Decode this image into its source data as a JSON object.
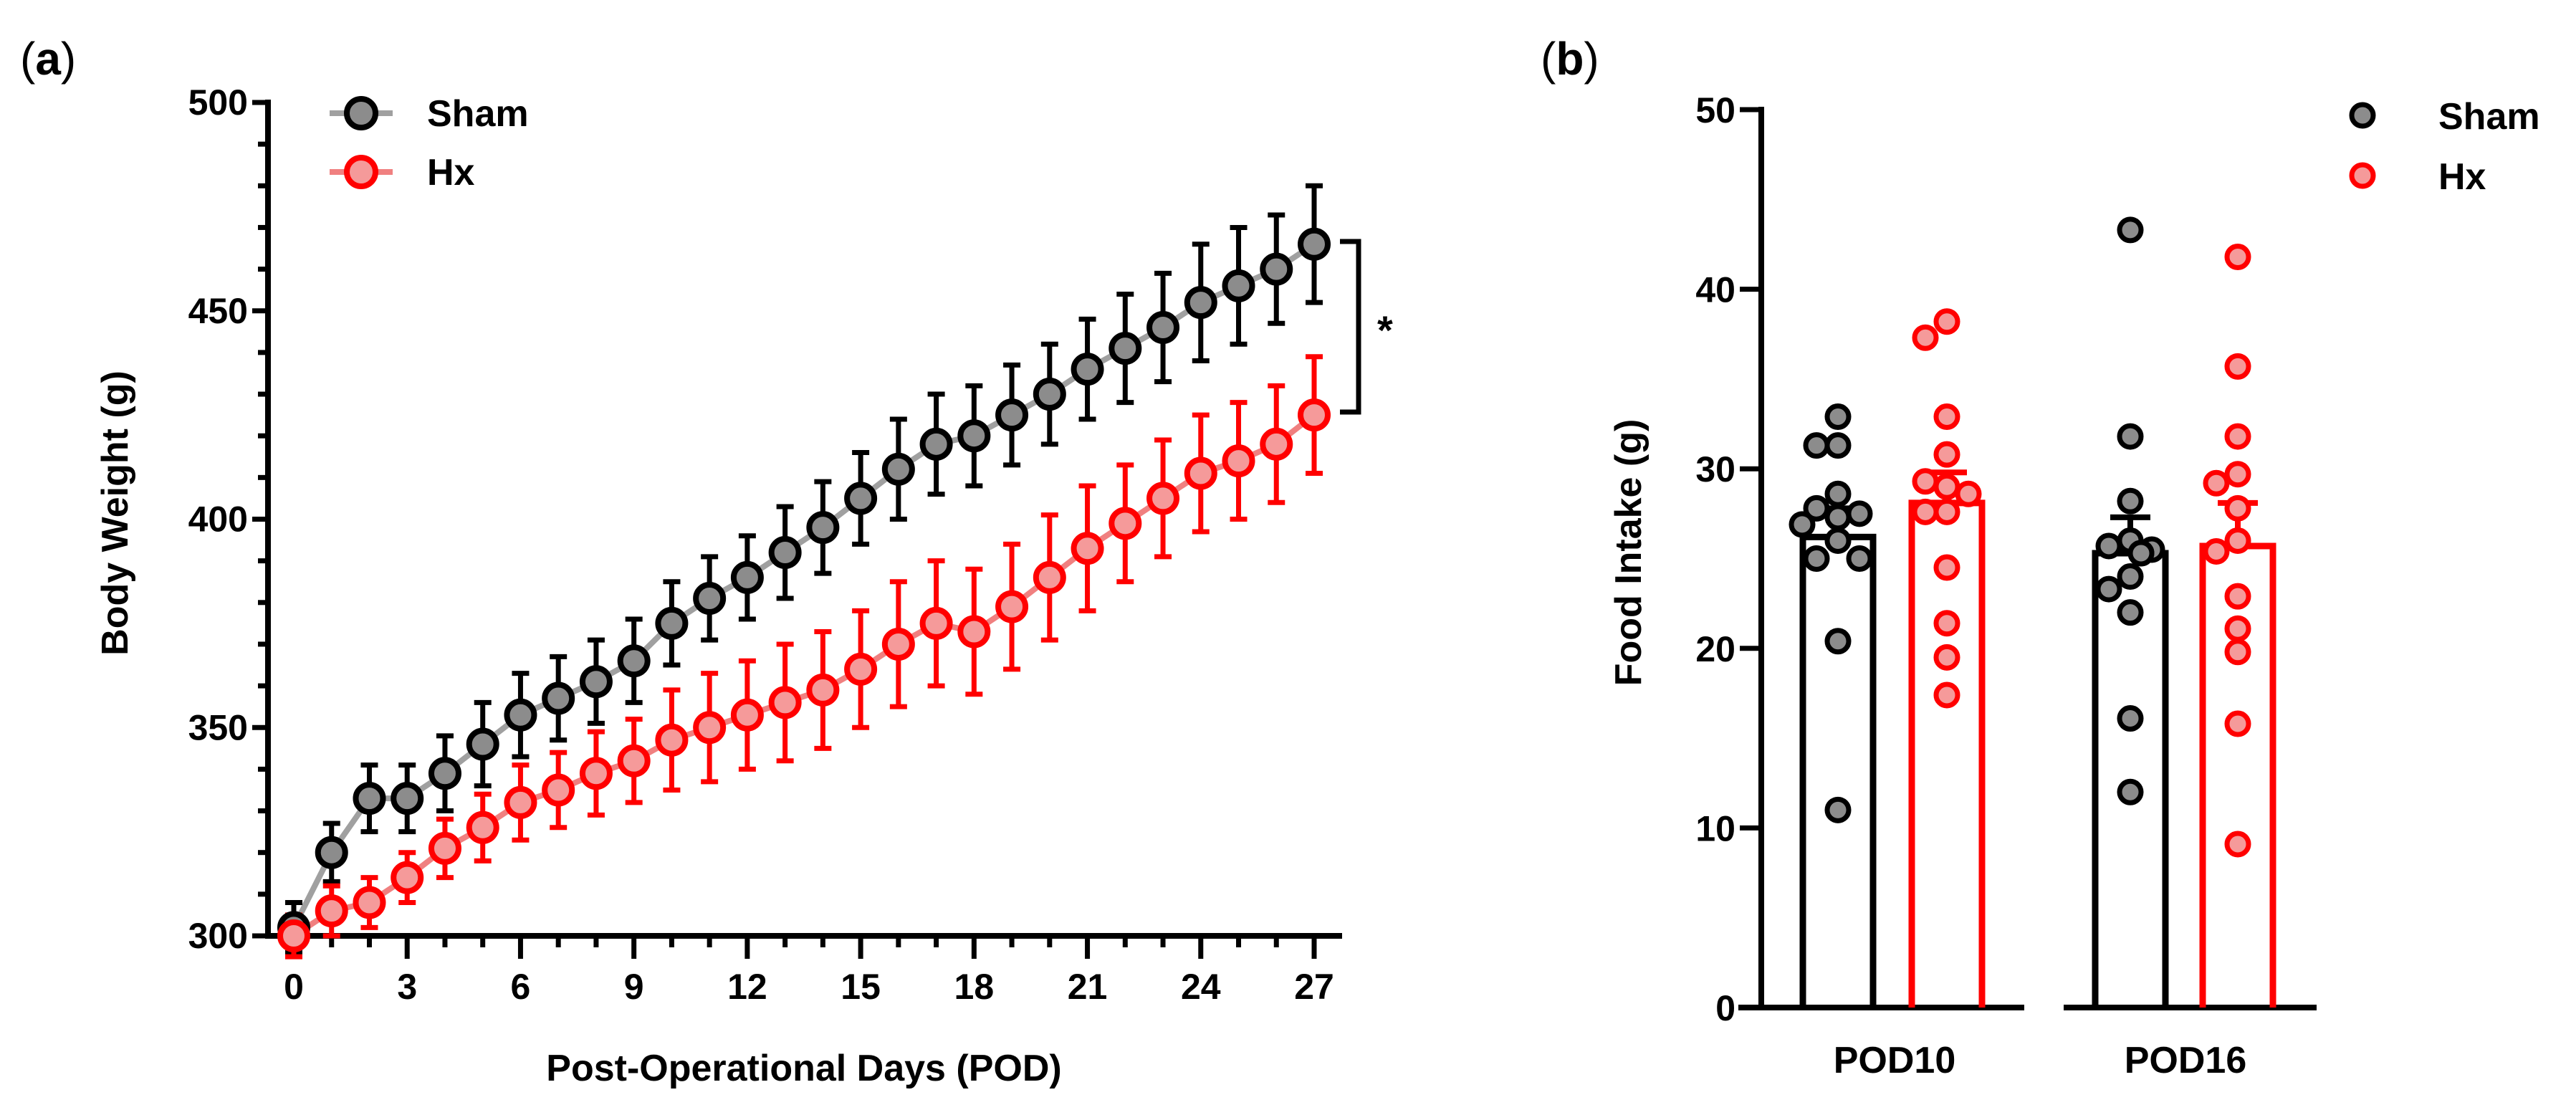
{
  "colors": {
    "sham_line": "#a0a0a0",
    "sham_fill": "#8c8c8c",
    "sham_stroke": "#000000",
    "hx_line": "#f08080",
    "hx_fill": "#f59a9a",
    "hx_stroke": "#ff0000",
    "axis": "#000000"
  },
  "chart_data": [
    {
      "panel_label": {
        "open": "(",
        "letter": "a",
        "close": ")"
      },
      "type": "line",
      "xlabel": "Post-Operational Days (POD)",
      "ylabel": "Body Weight (g)",
      "xlim": [
        0,
        27
      ],
      "ylim": [
        300,
        500
      ],
      "xticks": [
        "0",
        "3",
        "6",
        "9",
        "12",
        "15",
        "18",
        "21",
        "24",
        "27"
      ],
      "yticks": [
        "300",
        "350",
        "400",
        "450",
        "500"
      ],
      "legend_placement": "top-left",
      "significance": "*",
      "x": [
        0,
        1,
        2,
        3,
        4,
        5,
        6,
        7,
        8,
        9,
        10,
        11,
        12,
        13,
        14,
        15,
        16,
        17,
        18,
        19,
        20,
        21,
        22,
        23,
        24,
        25,
        26,
        27
      ],
      "series": [
        {
          "name": "Sham",
          "values": [
            302,
            320,
            333,
            333,
            339,
            346,
            353,
            357,
            361,
            366,
            375,
            381,
            386,
            392,
            398,
            405,
            412,
            418,
            420,
            425,
            430,
            436,
            441,
            446,
            452,
            456,
            460,
            466
          ],
          "sem": [
            6,
            7,
            8,
            8,
            9,
            10,
            10,
            10,
            10,
            10,
            10,
            10,
            10,
            11,
            11,
            11,
            12,
            12,
            12,
            12,
            12,
            12,
            13,
            13,
            14,
            14,
            13,
            14
          ]
        },
        {
          "name": "Hx",
          "values": [
            300,
            306,
            308,
            314,
            321,
            326,
            332,
            335,
            339,
            342,
            347,
            350,
            353,
            356,
            359,
            364,
            370,
            375,
            373,
            379,
            386,
            393,
            399,
            405,
            411,
            414,
            418,
            425
          ],
          "sem": [
            5,
            6,
            6,
            6,
            7,
            8,
            9,
            9,
            10,
            10,
            12,
            13,
            13,
            14,
            14,
            14,
            15,
            15,
            15,
            15,
            15,
            15,
            14,
            14,
            14,
            14,
            14,
            14
          ]
        }
      ]
    },
    {
      "panel_label": {
        "open": "(",
        "letter": "b",
        "close": ")"
      },
      "type": "bar",
      "xlabel": "",
      "ylabel": "Food Intake (g)",
      "ylim": [
        0,
        50
      ],
      "yticks": [
        "0",
        "10",
        "20",
        "30",
        "40",
        "50"
      ],
      "categories": [
        "POD10",
        "POD16"
      ],
      "legend_placement": "top-right",
      "series": [
        {
          "name": "Sham",
          "means": [
            26.2,
            25.3
          ],
          "sem": [
            1.6,
            2.0
          ],
          "points": [
            [
              32.9,
              31.3,
              31.3,
              28.6,
              27.8,
              27.3,
              27.5,
              26.9,
              26.0,
              25.0,
              25.0,
              20.4,
              11.0
            ],
            [
              43.3,
              31.8,
              28.2,
              26.0,
              25.7,
              25.5,
              25.3,
              25.3,
              24.0,
              23.3,
              22.0,
              16.1,
              12.0
            ]
          ]
        },
        {
          "name": "Hx",
          "means": [
            28.1,
            25.7
          ],
          "sem": [
            1.7,
            2.4
          ],
          "points": [
            [
              38.2,
              37.3,
              32.9,
              30.8,
              29.0,
              29.3,
              28.6,
              27.6,
              27.6,
              24.5,
              21.4,
              19.5,
              17.4
            ],
            [
              41.8,
              35.7,
              31.8,
              29.7,
              29.2,
              27.8,
              26.0,
              25.4,
              22.9,
              21.1,
              19.8,
              15.8,
              9.1
            ]
          ]
        }
      ]
    }
  ]
}
